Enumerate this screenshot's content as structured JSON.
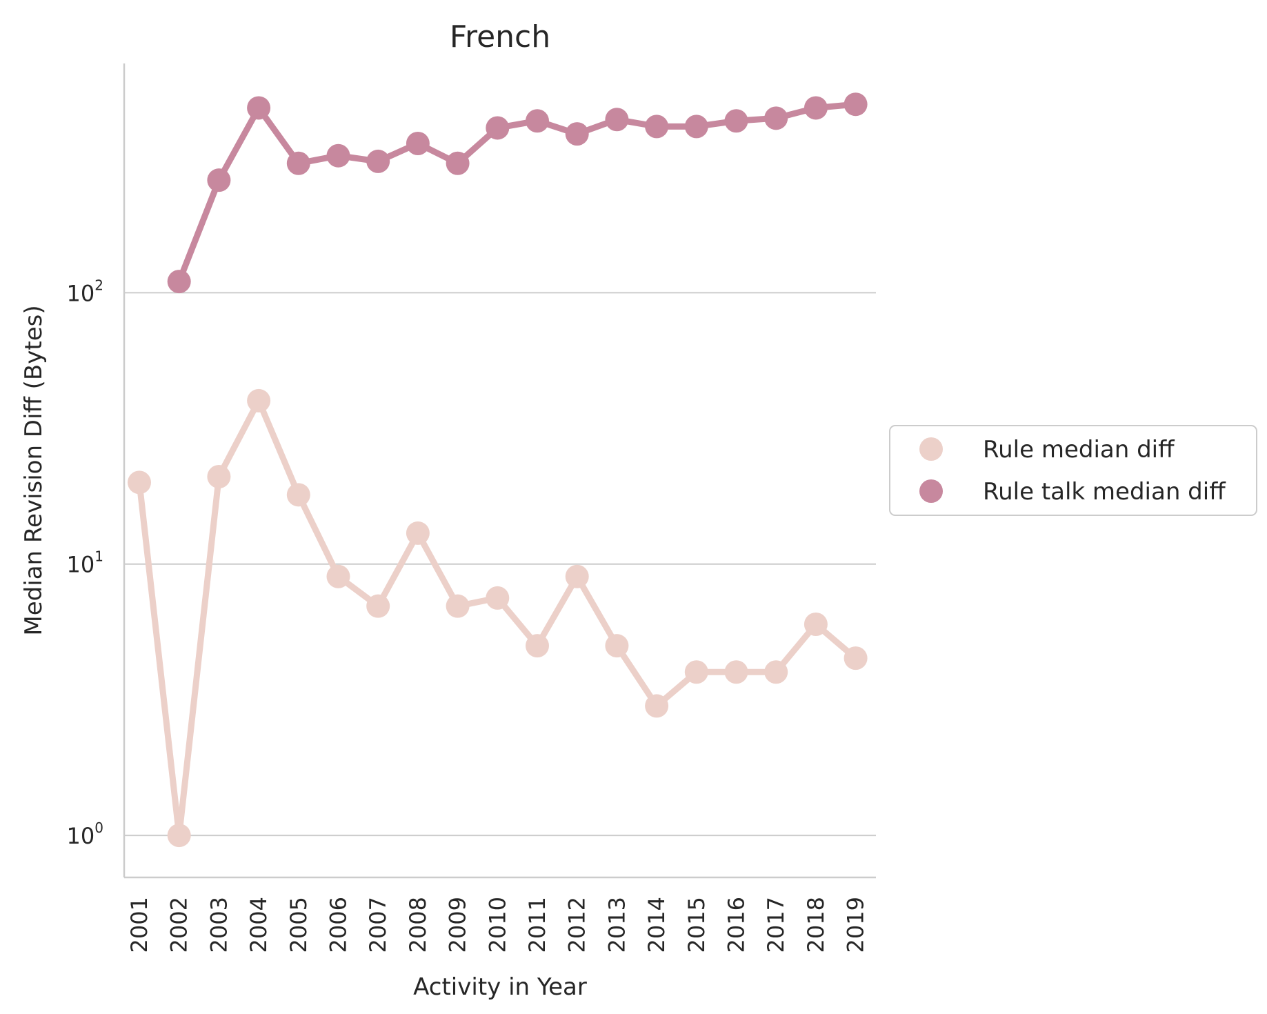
{
  "chart_data": {
    "type": "line",
    "title": "French",
    "xlabel": "Activity in Year",
    "ylabel": "Median Revision Diff (Bytes)",
    "yscale": "log",
    "ylim": [
      0.7,
      700
    ],
    "yticks": [
      1,
      10,
      100
    ],
    "ytick_labels": [
      {
        "base": "10",
        "exp": "0"
      },
      {
        "base": "10",
        "exp": "1"
      },
      {
        "base": "10",
        "exp": "2"
      }
    ],
    "grid": "y",
    "legend": "right-center",
    "categories": [
      "2001",
      "2002",
      "2003",
      "2004",
      "2005",
      "2006",
      "2007",
      "2008",
      "2009",
      "2010",
      "2011",
      "2012",
      "2013",
      "2014",
      "2015",
      "2016",
      "2017",
      "2018",
      "2019"
    ],
    "series": [
      {
        "name": "Rule median diff",
        "color": "#ecd0c9",
        "values": [
          20,
          1,
          21,
          40,
          18,
          9,
          7,
          13,
          7,
          7.5,
          5,
          9,
          5,
          3,
          4,
          4,
          4,
          6,
          4.5
        ]
      },
      {
        "name": "Rule talk median diff",
        "color": "#c7889e",
        "values": [
          null,
          110,
          260,
          480,
          300,
          320,
          305,
          355,
          300,
          405,
          430,
          385,
          435,
          410,
          410,
          430,
          440,
          480,
          495
        ]
      }
    ]
  }
}
